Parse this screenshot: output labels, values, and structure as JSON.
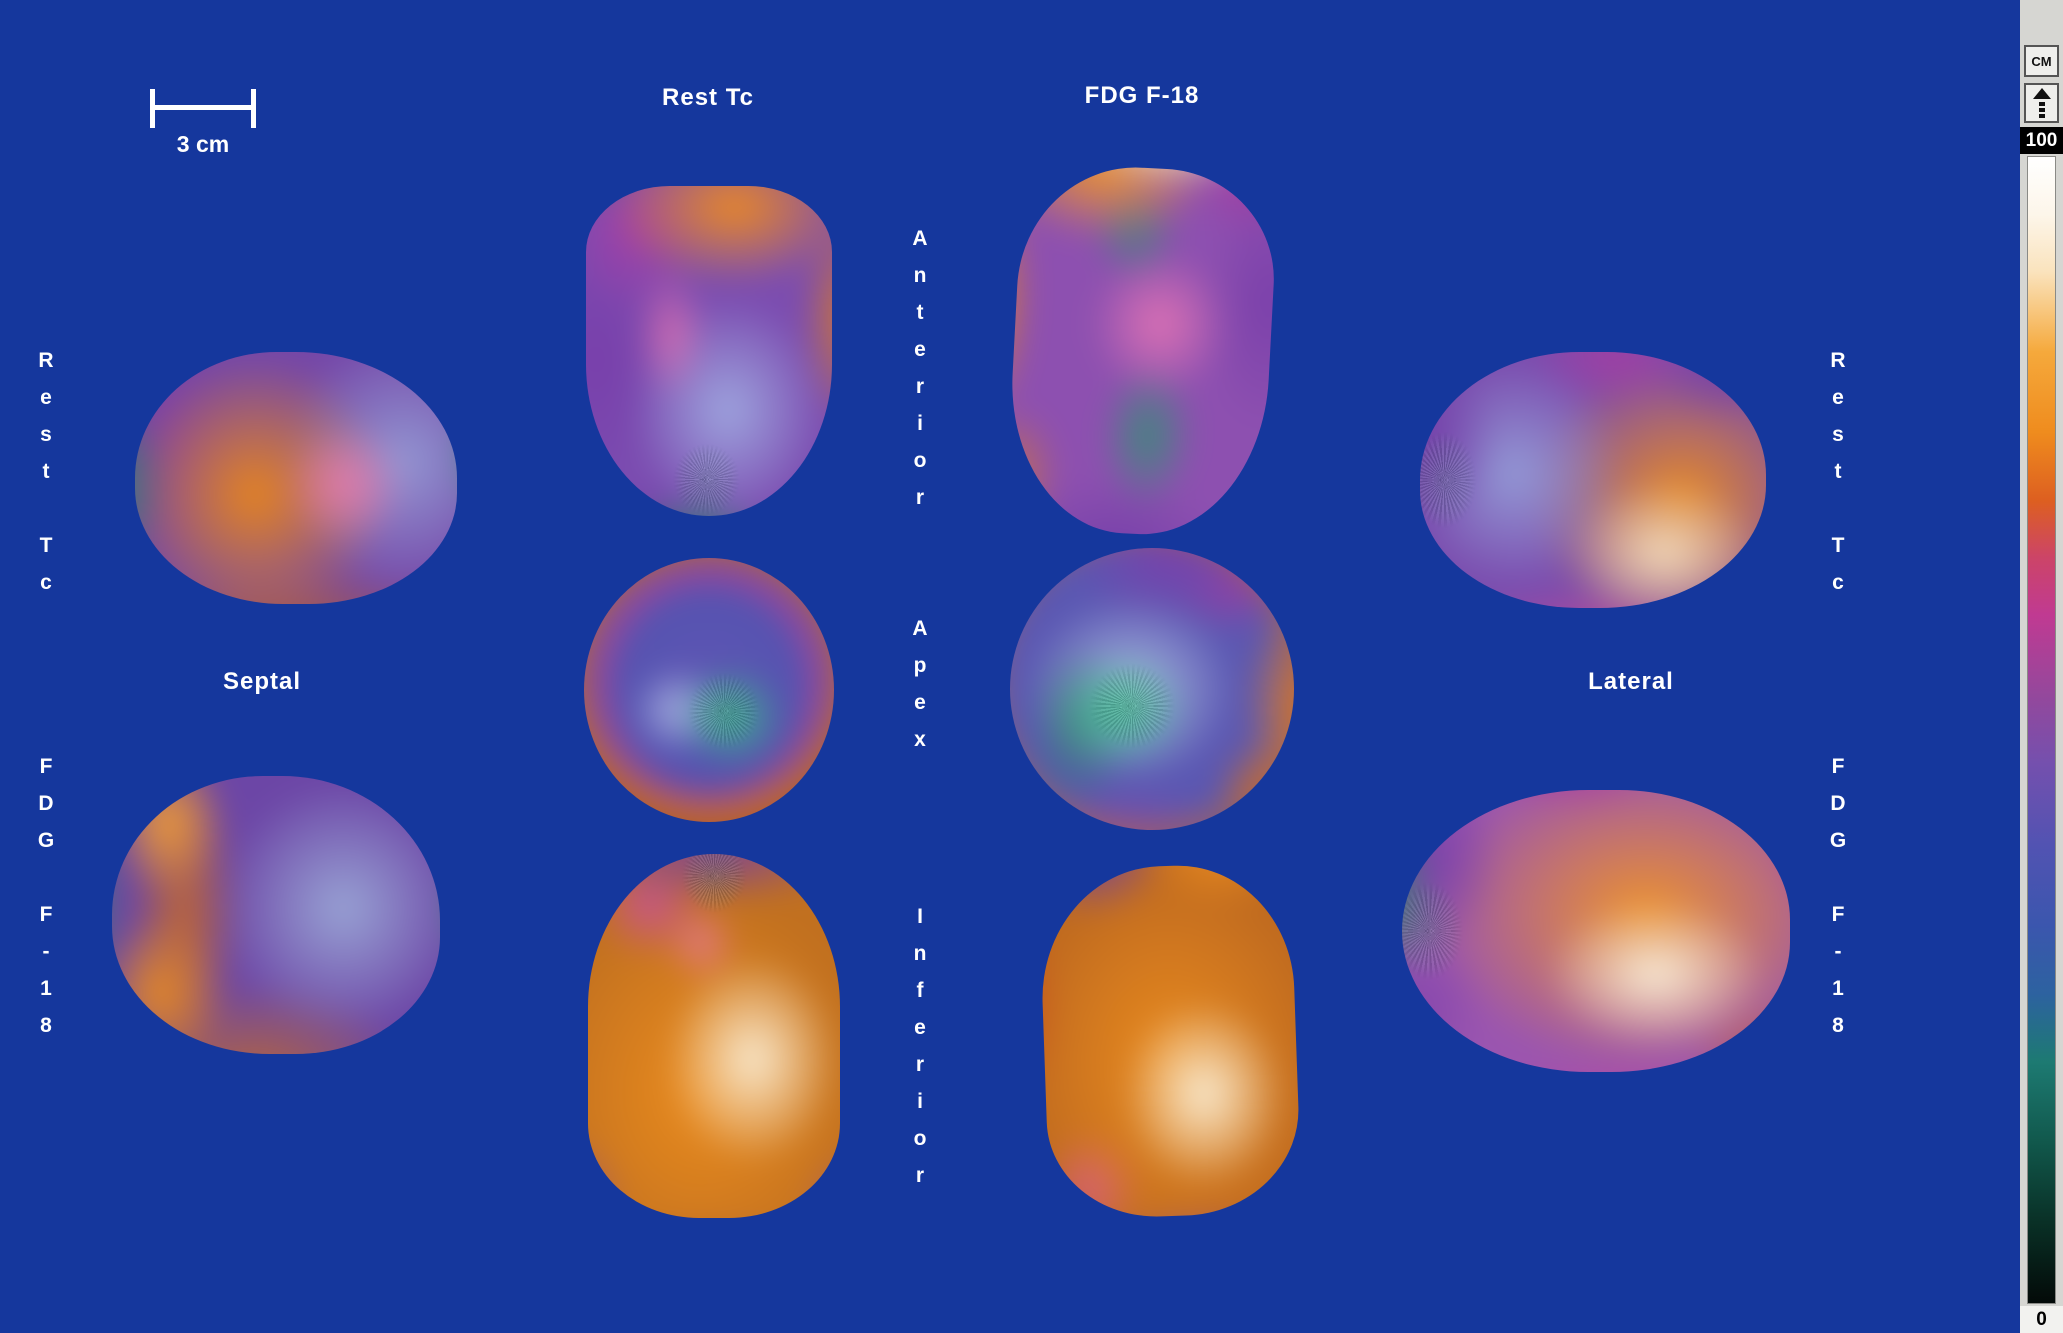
{
  "scale_bar": {
    "label": "3 cm"
  },
  "column_headers": {
    "rest": "Rest Tc",
    "fdg": "FDG F-18"
  },
  "row_labels": {
    "left_top": "Rest Tc",
    "left_bottom": "FDG F-18",
    "right_top": "Rest Tc",
    "right_bottom": "FDG F-18"
  },
  "view_labels": {
    "left": "Septal",
    "right": "Lateral",
    "middle_top": "Anterior",
    "middle_center": "Apex",
    "middle_bottom": "Inferior"
  },
  "colorbar": {
    "units_button": "CM",
    "max": "100",
    "min": "0",
    "gradient_stops": [
      [
        "#ffffff",
        "0%"
      ],
      [
        "#fdf6ea",
        "5%"
      ],
      [
        "#fae3bd",
        "10%"
      ],
      [
        "#f5a93c",
        "17%"
      ],
      [
        "#ef8c1e",
        "24%"
      ],
      [
        "#dd5f20",
        "30%"
      ],
      [
        "#cc4468",
        "35%"
      ],
      [
        "#c03a92",
        "40%"
      ],
      [
        "#94489c",
        "47%"
      ],
      [
        "#7450ae",
        "53%"
      ],
      [
        "#5253b2",
        "60%"
      ],
      [
        "#3b56ae",
        "67%"
      ],
      [
        "#2d62a0",
        "73%"
      ],
      [
        "#1d7a72",
        "79%"
      ],
      [
        "#11584c",
        "86%"
      ],
      [
        "#093026",
        "93%"
      ],
      [
        "#030a08",
        "100%"
      ]
    ]
  },
  "hearts": [
    {
      "tracer": "Rest Tc",
      "view": "Septal",
      "label": "Rest Tc - Septal"
    },
    {
      "tracer": "FDG F-18",
      "view": "Septal",
      "label": "FDG F-18 - Septal"
    },
    {
      "tracer": "Rest Tc",
      "view": "Anterior",
      "label": "Rest Tc - Anterior"
    },
    {
      "tracer": "Rest Tc",
      "view": "Apex",
      "label": "Rest Tc - Apex"
    },
    {
      "tracer": "Rest Tc",
      "view": "Inferior",
      "label": "Rest Tc - Inferior"
    },
    {
      "tracer": "FDG F-18",
      "view": "Anterior",
      "label": "FDG F-18 - Anterior"
    },
    {
      "tracer": "FDG F-18",
      "view": "Apex",
      "label": "FDG F-18 - Apex"
    },
    {
      "tracer": "FDG F-18",
      "view": "Inferior",
      "label": "FDG F-18 - Inferior"
    },
    {
      "tracer": "Rest Tc",
      "view": "Lateral",
      "label": "Rest Tc - Lateral"
    },
    {
      "tracer": "FDG F-18",
      "view": "Lateral",
      "label": "FDG F-18 - Lateral"
    }
  ],
  "colors": {
    "background": "#15379d",
    "text": "#ffffff",
    "colorbar_panel": "#d6d6d2"
  }
}
